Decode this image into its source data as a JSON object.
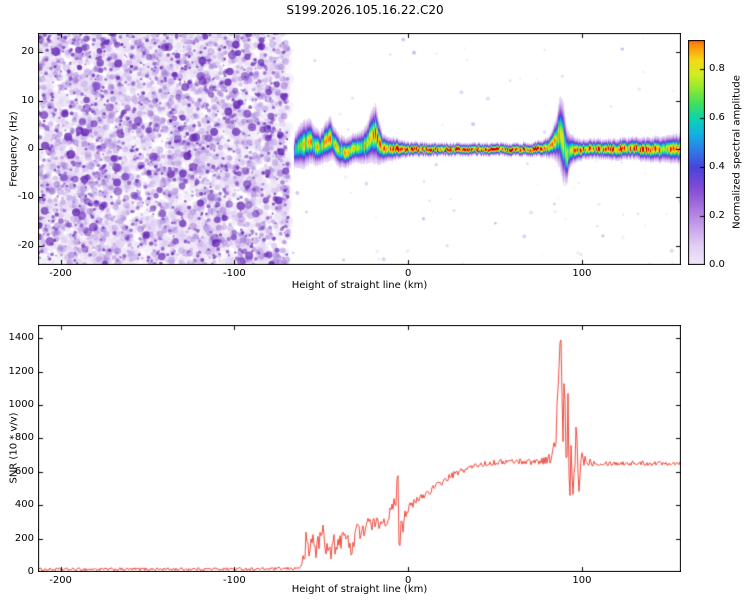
{
  "title": "S199.2026.105.16.22.C20",
  "colors": {
    "background": "#ffffff",
    "axis": "#000000",
    "snr_line": "#ee3b2e"
  },
  "colorbar": {
    "label": "Normalized spectral amplitude",
    "ticks": [
      0.0,
      0.2,
      0.4,
      0.6,
      0.8
    ],
    "vmax": 0.92,
    "stops": [
      [
        0.0,
        "#f1e7f9"
      ],
      [
        0.08,
        "#e3d0f4"
      ],
      [
        0.16,
        "#c6a0ea"
      ],
      [
        0.24,
        "#a672de"
      ],
      [
        0.32,
        "#7f4bd4"
      ],
      [
        0.4,
        "#4a43da"
      ],
      [
        0.47,
        "#2f7ae8"
      ],
      [
        0.54,
        "#12b4e2"
      ],
      [
        0.6,
        "#0cd4ae"
      ],
      [
        0.66,
        "#3ce060"
      ],
      [
        0.72,
        "#8ce832"
      ],
      [
        0.78,
        "#d0ee22"
      ],
      [
        0.84,
        "#f6d816"
      ],
      [
        0.9,
        "#ff8e0e"
      ],
      [
        0.95,
        "#f53008"
      ],
      [
        1.0,
        "#cf0000"
      ]
    ]
  },
  "chart_data": [
    {
      "type": "heatmap",
      "panel": "spectrogram",
      "title": "",
      "xlabel": "Height of straight line (km)",
      "ylabel": "Frequency (Hz)",
      "xlim": [
        -213,
        157
      ],
      "ylim": [
        -24,
        24
      ],
      "xticks": [
        -200,
        -100,
        0,
        100
      ],
      "yticks": [
        -20,
        -10,
        0,
        10,
        20
      ],
      "noise_region": {
        "x_end_km": -69,
        "description": "dense random purple speckle noise filling all frequencies",
        "palette": [
          "#e8dcf5",
          "#d4bdee",
          "#b392e2",
          "#9263d2",
          "#7a3fc4",
          "#6527b4"
        ],
        "counts": [
          2600,
          1700,
          900,
          160
        ],
        "sparse_dots_right": 90
      },
      "trace_fields": "x_km,center_hz,halo_hz,amplitude",
      "trace": [
        [
          -66,
          -0.5,
          3.5,
          0.55
        ],
        [
          -63,
          0.6,
          4.5,
          0.7
        ],
        [
          -60,
          1.2,
          5.0,
          0.75
        ],
        [
          -57,
          1.8,
          4.5,
          0.78
        ],
        [
          -54,
          0.8,
          4.0,
          0.8
        ],
        [
          -51,
          0.3,
          3.5,
          0.75
        ],
        [
          -48,
          1.5,
          4.0,
          0.78
        ],
        [
          -45,
          2.2,
          4.5,
          0.8
        ],
        [
          -43,
          1.2,
          3.5,
          0.75
        ],
        [
          -40,
          -0.3,
          3.5,
          0.78
        ],
        [
          -36,
          -0.8,
          3.0,
          0.75
        ],
        [
          -33,
          0.0,
          3.0,
          0.75
        ],
        [
          -30,
          0.3,
          3.0,
          0.72
        ],
        [
          -27,
          0.6,
          3.5,
          0.75
        ],
        [
          -24,
          1.2,
          4.0,
          0.78
        ],
        [
          -21,
          2.8,
          5.5,
          0.85
        ],
        [
          -19,
          3.2,
          6.0,
          0.88
        ],
        [
          -17,
          1.5,
          4.5,
          0.84
        ],
        [
          -15,
          0.3,
          3.0,
          0.8
        ],
        [
          -12,
          0.0,
          2.5,
          0.85
        ],
        [
          -8,
          0.2,
          2.2,
          0.9
        ],
        [
          -4,
          0.0,
          1.8,
          0.92
        ],
        [
          0,
          0.0,
          1.5,
          0.96
        ],
        [
          20,
          0.0,
          1.3,
          0.97
        ],
        [
          40,
          0.0,
          1.3,
          0.96
        ],
        [
          60,
          0.0,
          1.3,
          0.97
        ],
        [
          72,
          0.0,
          1.4,
          0.95
        ],
        [
          78,
          0.3,
          1.8,
          0.9
        ],
        [
          82,
          0.8,
          2.5,
          0.82
        ],
        [
          85,
          2.0,
          4.5,
          0.76
        ],
        [
          87,
          3.5,
          7.5,
          0.72
        ],
        [
          89,
          1.5,
          8.5,
          0.74
        ],
        [
          91,
          -1.5,
          6.0,
          0.72
        ],
        [
          93,
          -0.3,
          3.5,
          0.8
        ],
        [
          96,
          0.0,
          2.5,
          0.85
        ],
        [
          100,
          0.0,
          2.0,
          0.9
        ],
        [
          105,
          0.2,
          2.0,
          0.92
        ],
        [
          112,
          0.0,
          2.0,
          0.9
        ],
        [
          120,
          0.0,
          2.2,
          0.88
        ],
        [
          128,
          0.3,
          2.2,
          0.9
        ],
        [
          136,
          0.0,
          2.4,
          0.92
        ],
        [
          144,
          0.0,
          2.6,
          0.9
        ],
        [
          150,
          0.2,
          2.8,
          0.86
        ],
        [
          157,
          0.0,
          3.0,
          0.8
        ]
      ]
    },
    {
      "type": "line",
      "panel": "snr",
      "title": "",
      "xlabel": "Height of straight line (km)",
      "ylabel": "SNR (10 * v/v)",
      "xlim": [
        -213,
        157
      ],
      "ylim": [
        0,
        1480
      ],
      "xticks": [
        -200,
        -100,
        0,
        100
      ],
      "yticks": [
        0,
        200,
        400,
        600,
        800,
        1000,
        1200,
        1400
      ],
      "series": [
        {
          "name": "SNR",
          "color": "#ee3b2e",
          "points_fields": "x_km,mean,noise_peak_to_peak",
          "points": [
            [
              -213,
              15,
              18
            ],
            [
              -190,
              16,
              18
            ],
            [
              -170,
              16,
              18
            ],
            [
              -150,
              17,
              18
            ],
            [
              -130,
              17,
              18
            ],
            [
              -110,
              18,
              18
            ],
            [
              -95,
              18,
              18
            ],
            [
              -85,
              18,
              18
            ],
            [
              -75,
              19,
              18
            ],
            [
              -68,
              20,
              18
            ],
            [
              -64,
              22,
              20
            ],
            [
              -61,
              40,
              40
            ],
            [
              -59,
              160,
              180
            ],
            [
              -57,
              120,
              140
            ],
            [
              -55,
              210,
              190
            ],
            [
              -53,
              130,
              110
            ],
            [
              -51,
              190,
              170
            ],
            [
              -49,
              250,
              120
            ],
            [
              -47,
              150,
              130
            ],
            [
              -45,
              110,
              90
            ],
            [
              -43,
              175,
              140
            ],
            [
              -41,
              125,
              90
            ],
            [
              -39,
              195,
              150
            ],
            [
              -37,
              270,
              120
            ],
            [
              -35,
              170,
              130
            ],
            [
              -33,
              135,
              90
            ],
            [
              -31,
              215,
              150
            ],
            [
              -29,
              295,
              110
            ],
            [
              -27,
              195,
              120
            ],
            [
              -25,
              270,
              90
            ],
            [
              -23,
              315,
              80
            ],
            [
              -21,
              255,
              100
            ],
            [
              -19,
              305,
              80
            ],
            [
              -17,
              275,
              90
            ],
            [
              -15,
              325,
              70
            ],
            [
              -13,
              295,
              80
            ],
            [
              -11,
              345,
              70
            ],
            [
              -9,
              375,
              80
            ],
            [
              -7,
              450,
              110
            ],
            [
              -6,
              620,
              90
            ],
            [
              -5.5,
              300,
              220
            ],
            [
              -5,
              150,
              110
            ],
            [
              -4,
              330,
              160
            ],
            [
              -3,
              280,
              90
            ],
            [
              -2,
              345,
              70
            ],
            [
              0,
              380,
              60
            ],
            [
              3,
              405,
              55
            ],
            [
              6,
              435,
              55
            ],
            [
              10,
              468,
              50
            ],
            [
              14,
              498,
              45
            ],
            [
              18,
              528,
              42
            ],
            [
              22,
              556,
              40
            ],
            [
              26,
              582,
              38
            ],
            [
              30,
              602,
              36
            ],
            [
              34,
              620,
              34
            ],
            [
              38,
              634,
              34
            ],
            [
              42,
              644,
              32
            ],
            [
              48,
              654,
              32
            ],
            [
              54,
              660,
              32
            ],
            [
              60,
              663,
              34
            ],
            [
              66,
              663,
              36
            ],
            [
              72,
              661,
              40
            ],
            [
              76,
              666,
              44
            ],
            [
              80,
              673,
              50
            ],
            [
              83,
              692,
              75
            ],
            [
              85,
              810,
              190
            ],
            [
              86,
              1000,
              250
            ],
            [
              87,
              1250,
              200
            ],
            [
              88,
              1430,
              70
            ],
            [
              89,
              720,
              360
            ],
            [
              90,
              1160,
              260
            ],
            [
              91,
              520,
              290
            ],
            [
              92,
              960,
              310
            ],
            [
              93,
              370,
              190
            ],
            [
              94,
              760,
              260
            ],
            [
              95,
              420,
              130
            ],
            [
              96,
              660,
              190
            ],
            [
              97,
              860,
              210
            ],
            [
              98,
              520,
              160
            ],
            [
              100,
              690,
              100
            ],
            [
              103,
              662,
              55
            ],
            [
              107,
              656,
              40
            ],
            [
              112,
              653,
              32
            ],
            [
              120,
              651,
              28
            ],
            [
              130,
              652,
              28
            ],
            [
              140,
              651,
              28
            ],
            [
              150,
              653,
              28
            ],
            [
              157,
              654,
              28
            ]
          ]
        }
      ]
    }
  ]
}
